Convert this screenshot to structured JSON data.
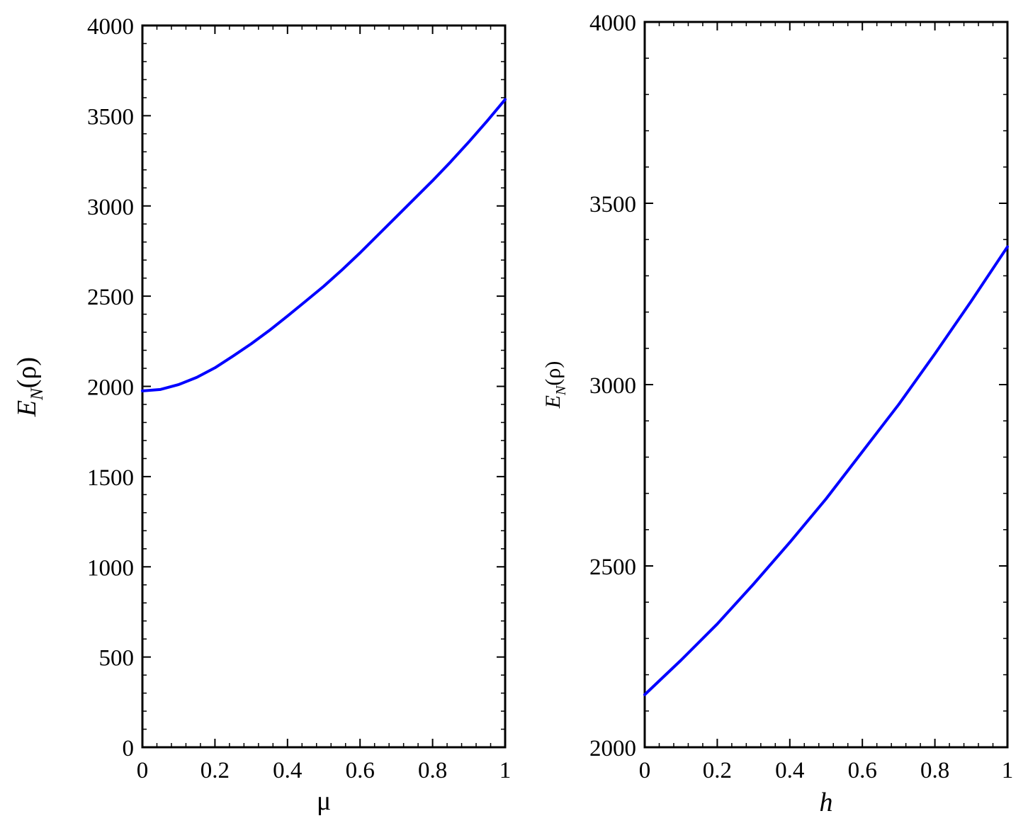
{
  "chart_data": [
    {
      "type": "line",
      "xlabel": "μ",
      "ylabel": {
        "main": "E",
        "sub": "N",
        "rest": "(ρ)"
      },
      "xlim": [
        0,
        1
      ],
      "ylim": [
        0,
        4000
      ],
      "xticks": [
        0,
        0.2,
        0.4,
        0.6,
        0.8,
        1
      ],
      "xtick_labels": [
        "0",
        "0.2",
        "0.4",
        "0.6",
        "0.8",
        "1"
      ],
      "yticks": [
        0,
        500,
        1000,
        1500,
        2000,
        2500,
        3000,
        3500,
        4000
      ],
      "ytick_labels": [
        "0",
        "500",
        "1000",
        "1500",
        "2000",
        "2500",
        "3000",
        "3500",
        "4000"
      ],
      "grid": false,
      "series": [
        {
          "color": "#0000ff",
          "x": [
            0,
            0.05,
            0.1,
            0.15,
            0.2,
            0.25,
            0.3,
            0.35,
            0.4,
            0.45,
            0.5,
            0.55,
            0.6,
            0.65,
            0.7,
            0.75,
            0.8,
            0.85,
            0.9,
            0.95,
            1
          ],
          "y": [
            1975,
            1983,
            2010,
            2050,
            2103,
            2168,
            2236,
            2310,
            2390,
            2472,
            2555,
            2645,
            2740,
            2840,
            2940,
            3040,
            3140,
            3245,
            3355,
            3470,
            3590
          ]
        }
      ]
    },
    {
      "type": "line",
      "xlabel": "h",
      "ylabel": {
        "main": "E",
        "sub": "N",
        "rest": "(ρ)"
      },
      "xlim": [
        0,
        1
      ],
      "ylim": [
        2000,
        4000
      ],
      "xticks": [
        0,
        0.2,
        0.4,
        0.6,
        0.8,
        1
      ],
      "xtick_labels": [
        "0",
        "0.2",
        "0.4",
        "0.6",
        "0.8",
        "1"
      ],
      "yticks": [
        2000,
        2500,
        3000,
        3500,
        4000
      ],
      "ytick_labels": [
        "2000",
        "2500",
        "3000",
        "3500",
        "4000"
      ],
      "grid": false,
      "series": [
        {
          "color": "#0000ff",
          "x": [
            0,
            0.1,
            0.2,
            0.3,
            0.4,
            0.5,
            0.6,
            0.7,
            0.8,
            0.9,
            1
          ],
          "y": [
            2145,
            2240,
            2340,
            2450,
            2565,
            2685,
            2815,
            2945,
            3085,
            3230,
            3380
          ]
        }
      ]
    }
  ]
}
